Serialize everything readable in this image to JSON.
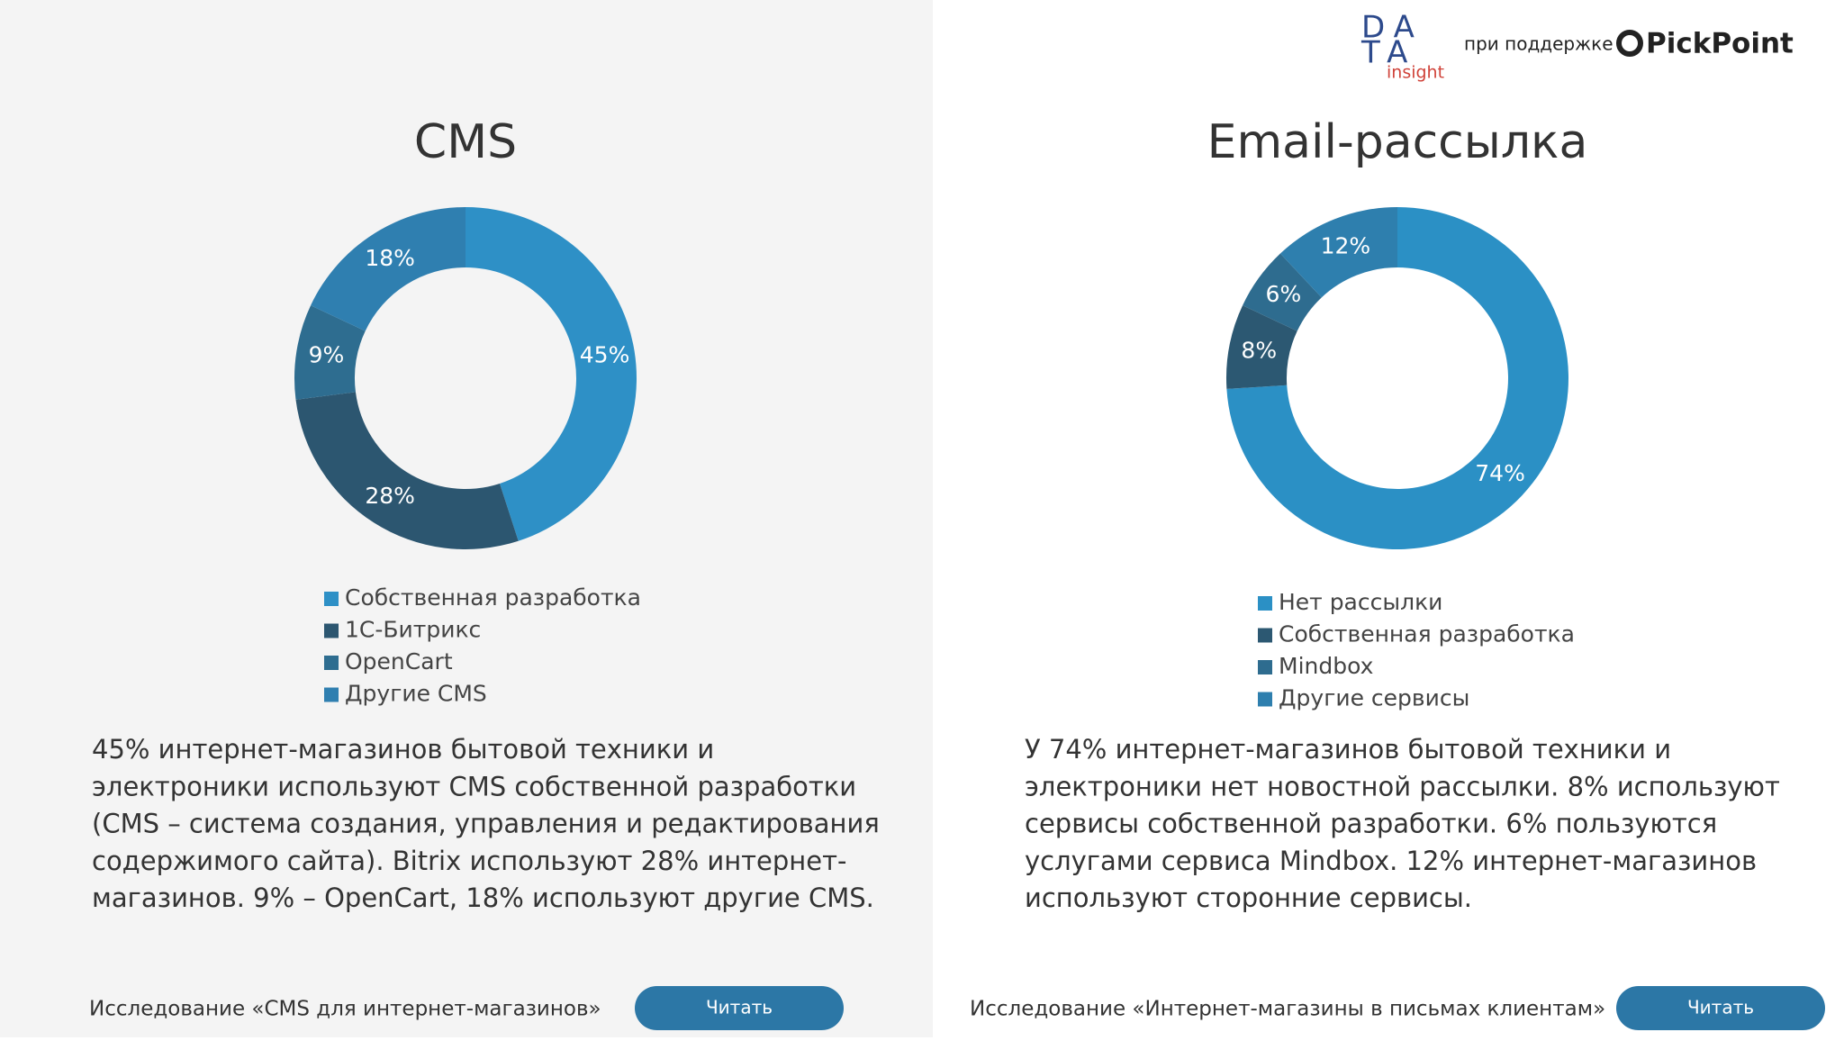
{
  "header": {
    "logo": {
      "line1": "DA",
      "line2": "TA",
      "sub": "insight"
    },
    "support": "при поддержке",
    "partner": "PickPoint"
  },
  "chart_data": [
    {
      "type": "donut",
      "title": "CMS",
      "categories": [
        "Собственная разработка",
        "1С-Битрикс",
        "OpenCart",
        "Другие CMS"
      ],
      "values": [
        45,
        28,
        9,
        18
      ],
      "value_labels": [
        "45%",
        "28%",
        "9%",
        "18%"
      ],
      "colors": [
        "#2e90c6",
        "#2c5670",
        "#2e6d90",
        "#2f7fb0"
      ]
    },
    {
      "type": "donut",
      "title": "Email-рассылка",
      "categories": [
        "Нет рассылки",
        "Собственная разработка",
        "Mindbox",
        "Другие сервисы"
      ],
      "values": [
        74,
        8,
        6,
        12
      ],
      "value_labels": [
        "74%",
        "8%",
        "6%",
        "12%"
      ],
      "colors": [
        "#2b90c5",
        "#2c5872",
        "#2e6c8f",
        "#2e7fae"
      ]
    }
  ],
  "panels": [
    {
      "text": [
        "45% интернет-магазинов бытовой техники и",
        "электроники используют CMS собственной разработки",
        "(CMS – система создания, управления и редактирования",
        "содержимого сайта). Bitrix используют 28% интернет-",
        "магазинов. 9% – OpenCart, 18% используют другие CMS."
      ],
      "study": "Исследование «CMS для интернет-магазинов»",
      "button": "Читать"
    },
    {
      "text": [
        "У 74% интернет-магазинов бытовой техники и",
        "электроники нет новостной рассылки. 8% используют",
        "сервисы собственной разработки. 6% пользуются",
        "услугами сервиса Mindbox. 12% интернет-магазинов",
        "используют сторонние сервисы."
      ],
      "study": "Исследование «Интернет-магазины в письмах клиентам»",
      "button": "Читать"
    }
  ]
}
